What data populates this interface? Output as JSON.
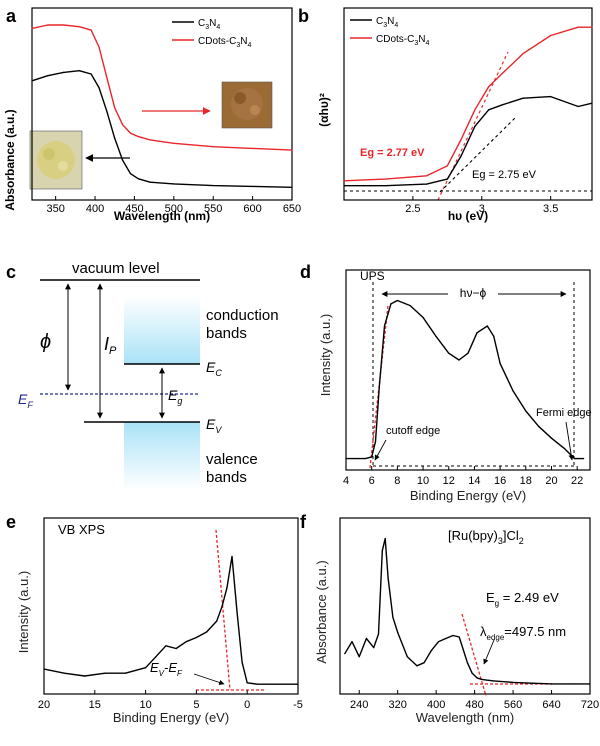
{
  "chart_data": [
    {
      "panel": "a",
      "type": "line",
      "xlabel": "Wavelength (nm)",
      "ylabel": "Absorbance (a.u.)",
      "xlim": [
        320,
        650
      ],
      "ylim": [
        0,
        1
      ],
      "xticks": [
        350,
        400,
        450,
        500,
        550,
        600,
        650
      ],
      "series": [
        {
          "name": "C3N4",
          "color": "#000000",
          "x": [
            320,
            340,
            360,
            380,
            395,
            405,
            415,
            425,
            435,
            445,
            455,
            470,
            500,
            550,
            600,
            650
          ],
          "y": [
            0.66,
            0.69,
            0.71,
            0.72,
            0.7,
            0.62,
            0.48,
            0.32,
            0.19,
            0.11,
            0.08,
            0.06,
            0.05,
            0.04,
            0.035,
            0.03
          ]
        },
        {
          "name": "CDots-C3N4",
          "color": "#e8262b",
          "x": [
            320,
            340,
            360,
            380,
            395,
            405,
            415,
            425,
            435,
            445,
            455,
            470,
            500,
            550,
            600,
            650
          ],
          "y": [
            0.97,
            0.99,
            0.99,
            0.98,
            0.96,
            0.86,
            0.68,
            0.5,
            0.4,
            0.35,
            0.33,
            0.31,
            0.29,
            0.27,
            0.26,
            0.25
          ]
        }
      ]
    },
    {
      "panel": "b",
      "type": "line",
      "xlabel": "hυ (eV)",
      "ylabel": "(αhυ)²",
      "xlim": [
        2.0,
        3.8
      ],
      "ylim": [
        0,
        1
      ],
      "xticks": [
        2.5,
        3.0,
        3.5
      ],
      "series": [
        {
          "name": "C3N4",
          "color": "#000000",
          "x": [
            2.0,
            2.3,
            2.6,
            2.75,
            2.85,
            2.95,
            3.05,
            3.15,
            3.3,
            3.5,
            3.7,
            3.8
          ],
          "y": [
            0.04,
            0.04,
            0.05,
            0.08,
            0.22,
            0.4,
            0.5,
            0.53,
            0.57,
            0.58,
            0.52,
            0.54
          ]
        },
        {
          "name": "CDots-C3N4",
          "color": "#e8262b",
          "x": [
            2.0,
            2.3,
            2.6,
            2.75,
            2.85,
            2.95,
            3.05,
            3.15,
            3.3,
            3.5,
            3.7,
            3.8
          ],
          "y": [
            0.07,
            0.08,
            0.1,
            0.16,
            0.32,
            0.5,
            0.64,
            0.72,
            0.84,
            0.95,
            1.0,
            1.0
          ]
        }
      ],
      "annotations": [
        "Eg = 2.77 eV",
        "Eg = 2.75 eV"
      ]
    },
    {
      "panel": "c",
      "type": "diagram",
      "labels": {
        "vacuum": "vacuum level",
        "phi": "ϕ",
        "ip": "I",
        "ip_sub": "P",
        "ef": "E",
        "ef_sub": "F",
        "eg": "E",
        "eg_sub": "g",
        "ec": "E",
        "ec_sub": "C",
        "ev": "E",
        "ev_sub": "V",
        "cb1": "conduction",
        "cb2": "bands",
        "vb1": "valence",
        "vb2": "bands"
      }
    },
    {
      "panel": "d",
      "type": "line",
      "title": "UPS",
      "xlabel": "Binding Energy (eV)",
      "ylabel": "Intensity (a.u.)",
      "xlim": [
        4,
        23
      ],
      "ylim": [
        0,
        1
      ],
      "xticks": [
        4,
        6,
        8,
        10,
        12,
        14,
        16,
        18,
        20,
        22
      ],
      "series": [
        {
          "name": "UPS",
          "color": "#000000",
          "x": [
            4,
            5.5,
            6.0,
            6.3,
            6.6,
            7.0,
            7.5,
            8.0,
            9.0,
            10,
            11,
            12,
            12.8,
            13.5,
            14.2,
            15,
            15.5,
            16,
            17,
            18,
            19,
            20,
            21,
            21.8,
            22.5
          ],
          "y": [
            0.02,
            0.02,
            0.03,
            0.12,
            0.45,
            0.8,
            0.93,
            0.95,
            0.92,
            0.85,
            0.74,
            0.64,
            0.6,
            0.64,
            0.76,
            0.8,
            0.74,
            0.58,
            0.42,
            0.3,
            0.21,
            0.14,
            0.08,
            0.02,
            0.02
          ]
        }
      ],
      "annotations": [
        "hν−ϕ",
        "cutoff edge",
        "Fermi edge"
      ]
    },
    {
      "panel": "e",
      "type": "line",
      "title": "VB XPS",
      "xlabel": "Binding Energy (eV)",
      "ylabel": "Intensity (a.u.)",
      "xlim": [
        20,
        -5
      ],
      "ylim": [
        0,
        1
      ],
      "xticks": [
        20,
        15,
        10,
        5,
        0,
        -5
      ],
      "series": [
        {
          "name": "VB XPS",
          "color": "#000000",
          "x": [
            20,
            18,
            16,
            14,
            12,
            10,
            9,
            8,
            7,
            6,
            5,
            4,
            3,
            2.5,
            2,
            1.5,
            1.0,
            0.5,
            0,
            -1,
            -3,
            -5
          ],
          "y": [
            0.13,
            0.1,
            0.08,
            0.1,
            0.1,
            0.14,
            0.22,
            0.3,
            0.28,
            0.33,
            0.36,
            0.4,
            0.48,
            0.58,
            0.72,
            0.95,
            0.55,
            0.18,
            0.03,
            0.02,
            0.02,
            0.02
          ]
        }
      ],
      "annotations": [
        "E",
        "V",
        "-E",
        "F"
      ]
    },
    {
      "panel": "f",
      "type": "line",
      "title": "[Ru(bpy)",
      "title_sub": "3",
      "title_tail": "]Cl",
      "title_sub2": "2",
      "xlabel": "Wavelength (nm)",
      "ylabel": "Absorbance (a.u.)",
      "xlim": [
        200,
        720
      ],
      "ylim": [
        0,
        1
      ],
      "xticks": [
        240,
        320,
        400,
        480,
        560,
        640,
        720
      ],
      "series": [
        {
          "name": "[Ru(bpy)3]Cl2",
          "color": "#000000",
          "x": [
            210,
            225,
            240,
            255,
            270,
            280,
            288,
            294,
            300,
            310,
            320,
            340,
            360,
            375,
            390,
            405,
            420,
            435,
            448,
            455,
            465,
            475,
            485,
            495,
            505,
            520,
            560,
            600,
            640,
            680,
            720
          ],
          "y": [
            0.22,
            0.3,
            0.2,
            0.32,
            0.26,
            0.35,
            0.9,
            0.98,
            0.72,
            0.46,
            0.36,
            0.2,
            0.14,
            0.16,
            0.24,
            0.3,
            0.32,
            0.34,
            0.33,
            0.26,
            0.16,
            0.09,
            0.06,
            0.05,
            0.045,
            0.04,
            0.03,
            0.025,
            0.02,
            0.02,
            0.02
          ]
        }
      ],
      "annotations": [
        "E",
        "g",
        " = 2.49 eV",
        "λ",
        "edge",
        "=497.5 nm"
      ]
    }
  ],
  "panel_a_legend": [
    "C",
    "3",
    "N",
    "4",
    "CDots-C",
    "3",
    "N",
    "4"
  ],
  "panel_b_legend": [
    "C",
    "3",
    "N",
    "4",
    "CDots-C",
    "3",
    "N",
    "4"
  ]
}
